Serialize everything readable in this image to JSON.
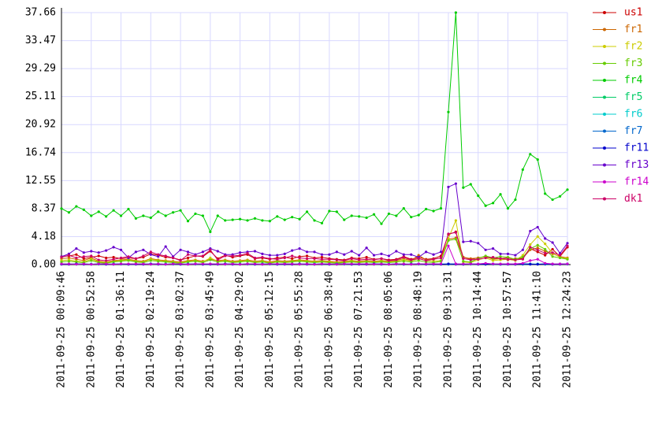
{
  "chart_data": {
    "type": "line",
    "categories": [
      "2011-09-25 00:09:46",
      null,
      null,
      null,
      "2011-09-25 00:52:58",
      null,
      null,
      null,
      "2011-09-25 01:36:11",
      null,
      null,
      null,
      "2011-09-25 02:19:24",
      null,
      null,
      null,
      "2011-09-25 03:02:37",
      null,
      null,
      null,
      "2011-09-25 03:45:49",
      null,
      null,
      null,
      "2011-09-25 04:29:02",
      null,
      null,
      null,
      "2011-09-25 05:12:15",
      null,
      null,
      null,
      "2011-09-25 05:55:28",
      null,
      null,
      null,
      "2011-09-25 06:38:40",
      null,
      null,
      null,
      "2011-09-25 07:21:53",
      null,
      null,
      null,
      "2011-09-25 08:05:06",
      null,
      null,
      null,
      "2011-09-25 08:48:19",
      null,
      null,
      null,
      "2011-09-25 09:31:31",
      null,
      null,
      null,
      "2011-09-25 10:14:44",
      null,
      null,
      null,
      "2011-09-25 10:57:57",
      null,
      null,
      null,
      "2011-09-25 11:41:10",
      null,
      null,
      null,
      "2011-09-25 12:24:23"
    ],
    "ylim": [
      0,
      37.66
    ],
    "yticks": [
      {
        "value": 0,
        "label": "0.00"
      },
      4.18,
      8.37,
      12.55,
      16.74,
      20.92,
      25.11,
      29.29,
      33.47,
      37.66
    ],
    "grid": true,
    "legend": "right",
    "series": [
      {
        "name": "us1",
        "color": "#cc0000",
        "values": [
          1.2,
          1.3,
          1.5,
          0.9,
          1.1,
          1.3,
          1.0,
          1.1,
          0.9,
          1.0,
          0.9,
          1.1,
          1.6,
          1.4,
          1.1,
          1.0,
          0.7,
          1.0,
          1.3,
          1.2,
          2.0,
          0.9,
          1.4,
          1.1,
          1.3,
          1.5,
          0.9,
          1.0,
          0.8,
          1.0,
          1.1,
          0.9,
          1.2,
          1.3,
          1.0,
          1.1,
          0.9,
          0.8,
          0.7,
          1.0,
          0.9,
          1.1,
          0.8,
          0.9,
          0.7,
          0.8,
          1.2,
          0.8,
          1.1,
          0.8,
          0.9,
          1.3,
          4.5,
          4.9,
          1.1,
          0.8,
          1.0,
          1.2,
          0.9,
          0.9,
          1.0,
          0.8,
          0.9,
          2.4,
          1.9,
          1.4,
          2.3,
          1.2,
          2.6
        ]
      },
      {
        "name": "fr1",
        "color": "#cc6600",
        "values": [
          0.9,
          1.0,
          0.8,
          0.6,
          1.0,
          0.5,
          0.4,
          0.6,
          0.7,
          0.8,
          0.6,
          0.5,
          0.9,
          0.7,
          0.6,
          0.5,
          0.4,
          0.6,
          0.7,
          0.5,
          0.8,
          0.6,
          0.7,
          0.5,
          0.6,
          0.7,
          0.5,
          0.6,
          0.4,
          0.6,
          0.5,
          0.6,
          0.7,
          0.6,
          0.5,
          0.6,
          0.5,
          0.4,
          0.5,
          0.6,
          0.5,
          0.6,
          0.5,
          0.6,
          0.5,
          0.6,
          0.9,
          0.6,
          1.4,
          0.7,
          0.8,
          1.0,
          3.8,
          4.0,
          1.1,
          0.9,
          1.0,
          1.2,
          0.8,
          0.9,
          0.7,
          0.9,
          1.0,
          2.2,
          2.5,
          2.0,
          1.6,
          1.2,
          1.0
        ]
      },
      {
        "name": "fr2",
        "color": "#cccc00",
        "values": [
          0.6,
          0.7,
          0.5,
          0.4,
          0.8,
          0.4,
          0.3,
          0.5,
          0.6,
          0.7,
          0.5,
          0.4,
          0.8,
          0.6,
          0.5,
          0.4,
          0.3,
          0.5,
          0.6,
          0.4,
          1.0,
          0.5,
          0.6,
          0.4,
          0.5,
          0.6,
          0.4,
          0.5,
          0.3,
          0.5,
          0.4,
          0.5,
          0.6,
          0.5,
          0.4,
          0.5,
          0.4,
          0.3,
          0.4,
          0.5,
          0.4,
          0.5,
          0.4,
          0.5,
          0.4,
          0.5,
          0.7,
          0.5,
          0.9,
          0.6,
          0.5,
          0.6,
          3.9,
          6.6,
          0.4,
          0.3,
          0.7,
          1.0,
          0.6,
          0.7,
          0.8,
          0.6,
          1.4,
          3.0,
          4.2,
          3.1,
          1.7,
          1.1,
          0.9
        ]
      },
      {
        "name": "fr3",
        "color": "#66cc00",
        "values": [
          0.4,
          0.5,
          0.4,
          0.3,
          0.6,
          0.3,
          0.2,
          0.4,
          0.5,
          0.6,
          0.4,
          0.3,
          0.6,
          0.5,
          0.4,
          0.3,
          0.2,
          0.4,
          0.5,
          0.3,
          0.7,
          0.4,
          0.5,
          0.3,
          0.4,
          0.5,
          0.3,
          0.4,
          0.2,
          0.4,
          0.3,
          0.4,
          0.5,
          0.4,
          0.3,
          0.4,
          0.3,
          0.2,
          0.3,
          0.4,
          0.3,
          0.4,
          0.3,
          0.4,
          0.3,
          0.4,
          0.5,
          0.4,
          0.6,
          0.4,
          0.3,
          0.5,
          3.6,
          3.8,
          0.5,
          0.4,
          0.9,
          1.3,
          1.0,
          1.2,
          1.1,
          0.8,
          1.1,
          2.4,
          2.9,
          2.3,
          1.2,
          1.0,
          0.8
        ]
      },
      {
        "name": "fr4",
        "color": "#00cc00",
        "values": [
          8.37,
          7.8,
          8.7,
          8.2,
          7.3,
          7.9,
          7.2,
          8.1,
          7.3,
          8.3,
          6.9,
          7.3,
          7.0,
          7.9,
          7.3,
          7.8,
          8.1,
          6.5,
          7.6,
          7.3,
          4.9,
          7.3,
          6.6,
          6.7,
          6.8,
          6.6,
          6.9,
          6.6,
          6.5,
          7.2,
          6.7,
          7.1,
          6.8,
          7.9,
          6.6,
          6.2,
          8.0,
          7.9,
          6.7,
          7.3,
          7.2,
          7.0,
          7.5,
          6.1,
          7.6,
          7.3,
          8.4,
          7.1,
          7.4,
          8.3,
          8.0,
          8.4,
          22.8,
          37.66,
          11.5,
          12.0,
          10.3,
          8.8,
          9.2,
          10.5,
          8.4,
          9.7,
          14.2,
          16.5,
          15.7,
          10.6,
          9.7,
          10.2,
          11.2
        ]
      },
      {
        "name": "fr5",
        "color": "#00cc66",
        "values": [
          0.1,
          0.1,
          0.05,
          0.1,
          0.05,
          0.1,
          0.1,
          0.05,
          0.1,
          0.1,
          0.1,
          0.1,
          0.05,
          0.1,
          0.05,
          0.1,
          0.1,
          0.05,
          0.1,
          0.1,
          0.1,
          0.1,
          0.05,
          0.1,
          0.05,
          0.1,
          0.1,
          0.05,
          0.1,
          0.1,
          0.1,
          0.1,
          0.05,
          0.1,
          0.05,
          0.1,
          0.1,
          0.05,
          0.1,
          0.1,
          0.1,
          0.1,
          0.05,
          0.1,
          0.05,
          0.1,
          0.1,
          0.05,
          0.1,
          0.1,
          0.1,
          0.1,
          0.05,
          0.1,
          0.05,
          0.1,
          0.1,
          0.05,
          0.1,
          0.1,
          0.1,
          0.05,
          0.1,
          0.1,
          0.05,
          0.1,
          0.1,
          0.05,
          0.1
        ]
      },
      {
        "name": "fr6",
        "color": "#00cccc",
        "values": [
          0.05,
          0.1,
          0.05,
          0.05,
          0.1,
          0.05,
          0.05,
          0.1,
          0.05,
          0.05,
          0.05,
          0.1,
          0.05,
          0.05,
          0.1,
          0.05,
          0.05,
          0.1,
          0.05,
          0.05,
          0.05,
          0.1,
          0.05,
          0.05,
          0.1,
          0.05,
          0.05,
          0.1,
          0.05,
          0.05,
          0.05,
          0.1,
          0.05,
          0.05,
          0.1,
          0.05,
          0.05,
          0.1,
          0.05,
          0.05,
          0.05,
          0.1,
          0.05,
          0.05,
          0.1,
          0.05,
          0.05,
          0.1,
          0.05,
          0.05,
          0.05,
          0.1,
          0.05,
          0.05,
          0.1,
          0.05,
          0.05,
          0.1,
          0.05,
          0.05,
          0.05,
          0.1,
          0.05,
          0.05,
          0.1,
          0.05,
          0.05,
          0.1,
          0.05
        ]
      },
      {
        "name": "fr7",
        "color": "#0066cc",
        "values": [
          0.1,
          0.05,
          0.1,
          0.1,
          0.05,
          0.1,
          0.05,
          0.1,
          0.1,
          0.05,
          0.1,
          0.05,
          0.1,
          0.1,
          0.05,
          0.1,
          0.05,
          0.1,
          0.1,
          0.05,
          0.1,
          0.05,
          0.1,
          0.1,
          0.05,
          0.1,
          0.05,
          0.1,
          0.1,
          0.05,
          0.1,
          0.05,
          0.1,
          0.1,
          0.05,
          0.1,
          0.05,
          0.1,
          0.1,
          0.05,
          0.1,
          0.05,
          0.1,
          0.1,
          0.05,
          0.1,
          0.05,
          0.1,
          0.1,
          0.05,
          0.1,
          0.05,
          0.1,
          0.1,
          0.05,
          0.1,
          0.05,
          0.1,
          0.1,
          0.05,
          0.1,
          0.05,
          0.1,
          0.1,
          0.05,
          0.1,
          0.05,
          0.1,
          0.1
        ]
      },
      {
        "name": "fr11",
        "color": "#0000cc",
        "values": [
          0.05,
          0.05,
          0.1,
          0.05,
          0.05,
          0.1,
          0.05,
          0.05,
          0.1,
          0.05,
          0.05,
          0.05,
          0.1,
          0.05,
          0.05,
          0.1,
          0.05,
          0.05,
          0.1,
          0.05,
          0.05,
          0.05,
          0.1,
          0.05,
          0.05,
          0.1,
          0.05,
          0.05,
          0.1,
          0.05,
          0.05,
          0.05,
          0.1,
          0.05,
          0.05,
          0.1,
          0.05,
          0.05,
          0.1,
          0.05,
          0.05,
          0.05,
          0.1,
          0.05,
          0.05,
          0.1,
          0.05,
          0.05,
          0.1,
          0.05,
          0.05,
          0.05,
          0.1,
          0.05,
          0.05,
          0.1,
          0.05,
          0.05,
          0.1,
          0.05,
          0.05,
          0.05,
          0.1,
          0.05,
          0.05,
          0.1,
          0.05,
          0.05,
          0.1
        ]
      },
      {
        "name": "fr13",
        "color": "#6600cc",
        "values": [
          1.2,
          1.6,
          2.4,
          1.8,
          2.0,
          1.8,
          2.1,
          2.6,
          2.2,
          1.0,
          1.9,
          2.2,
          1.5,
          1.2,
          2.7,
          1.2,
          2.2,
          1.9,
          1.5,
          1.9,
          2.4,
          2.0,
          1.5,
          1.5,
          1.8,
          1.9,
          2.0,
          1.6,
          1.4,
          1.4,
          1.6,
          2.1,
          2.4,
          1.9,
          1.9,
          1.5,
          1.5,
          1.9,
          1.5,
          2.0,
          1.4,
          2.5,
          1.4,
          1.6,
          1.3,
          2.0,
          1.5,
          1.5,
          1.1,
          1.9,
          1.5,
          1.9,
          11.6,
          12.1,
          3.4,
          3.5,
          3.2,
          2.2,
          2.4,
          1.6,
          1.6,
          1.4,
          2.2,
          5.0,
          5.6,
          3.9,
          3.3,
          1.7,
          3.2
        ]
      },
      {
        "name": "fr14",
        "color": "#cc00cc",
        "values": [
          0.1,
          0.1,
          0.05,
          0.1,
          0.05,
          0.1,
          0.1,
          0.05,
          0.1,
          0.1,
          0.1,
          0.1,
          0.05,
          0.1,
          0.05,
          0.1,
          0.1,
          0.05,
          0.1,
          0.1,
          0.1,
          0.1,
          0.05,
          0.1,
          0.05,
          0.1,
          0.1,
          0.05,
          0.1,
          0.1,
          0.1,
          0.1,
          0.05,
          0.1,
          0.05,
          0.1,
          0.1,
          0.05,
          0.1,
          0.1,
          0.1,
          0.1,
          0.05,
          0.1,
          0.05,
          0.1,
          0.1,
          0.05,
          0.1,
          0.1,
          0.1,
          0.1,
          2.8,
          0.1,
          0.1,
          0.1,
          0.1,
          0.2,
          0.1,
          0.1,
          0.1,
          0.1,
          0.2,
          0.6,
          0.8,
          0.2,
          0.1,
          0.1,
          0.1
        ]
      },
      {
        "name": "dk1",
        "color": "#cc0066",
        "values": [
          1.1,
          1.4,
          1.0,
          1.2,
          1.3,
          0.7,
          0.6,
          0.8,
          1.0,
          1.2,
          0.9,
          1.3,
          1.9,
          1.5,
          1.3,
          1.0,
          0.6,
          1.5,
          1.3,
          1.3,
          2.2,
          0.7,
          1.3,
          1.3,
          1.4,
          1.7,
          1.0,
          1.1,
          0.9,
          0.8,
          1.0,
          1.3,
          1.0,
          0.9,
          0.9,
          0.8,
          0.8,
          0.7,
          0.6,
          0.9,
          0.7,
          0.8,
          0.7,
          0.9,
          0.6,
          0.7,
          1.1,
          0.7,
          0.9,
          0.6,
          0.8,
          1.0,
          4.6,
          4.8,
          0.9,
          0.7,
          0.8,
          1.0,
          1.1,
          0.9,
          0.8,
          0.7,
          0.8,
          2.6,
          2.2,
          1.7,
          1.8,
          1.4,
          2.8
        ]
      }
    ]
  }
}
